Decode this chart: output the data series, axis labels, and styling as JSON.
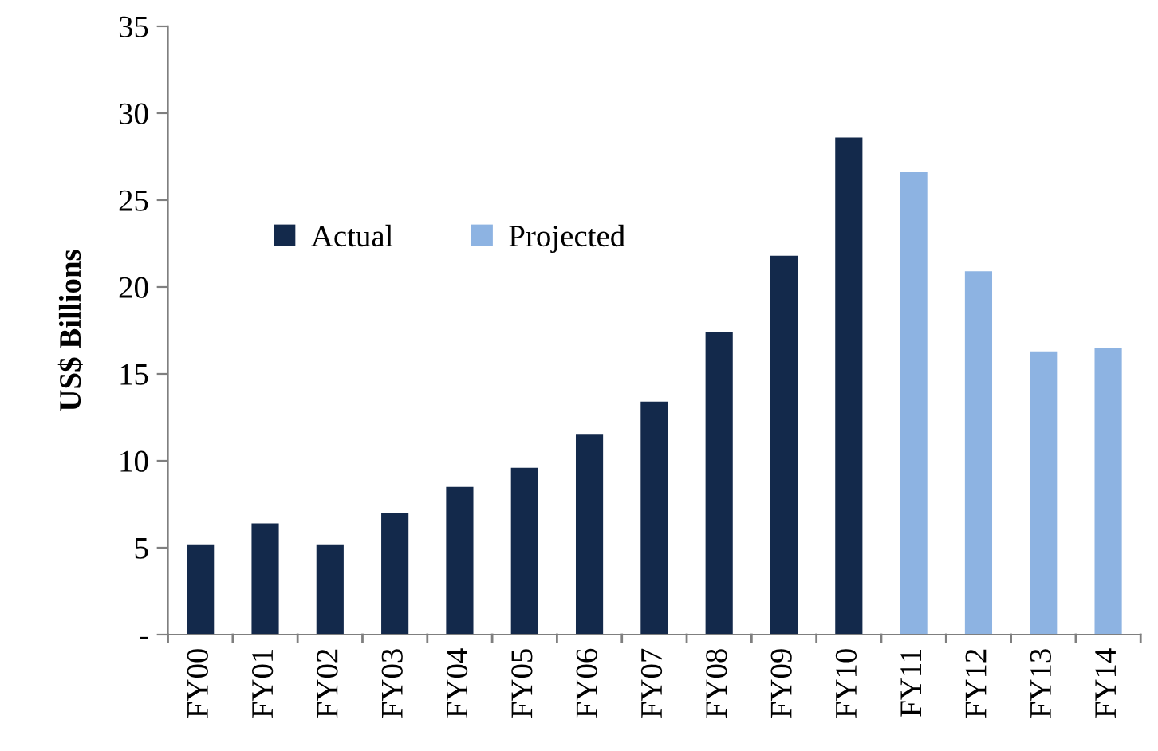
{
  "chart_data": {
    "type": "bar",
    "ylabel": "US$ Billions",
    "categories": [
      "FY00",
      "FY01",
      "FY02",
      "FY03",
      "FY04",
      "FY05",
      "FY06",
      "FY07",
      "FY08",
      "FY09",
      "FY10",
      "FY11",
      "FY12",
      "FY13",
      "FY14"
    ],
    "series": [
      {
        "name": "Actual",
        "color": "#13294b",
        "values": [
          5.2,
          6.4,
          5.2,
          7.0,
          8.5,
          9.6,
          11.5,
          13.4,
          17.4,
          21.8,
          28.6,
          null,
          null,
          null,
          null
        ]
      },
      {
        "name": "Projected",
        "color": "#8db3e2",
        "values": [
          null,
          null,
          null,
          null,
          null,
          null,
          null,
          null,
          null,
          null,
          null,
          26.6,
          20.9,
          16.3,
          16.5
        ]
      }
    ],
    "ylim": [
      0,
      35
    ],
    "yticks": [
      {
        "value": 0,
        "label": "-"
      },
      5,
      10,
      15,
      20,
      25,
      30,
      35
    ],
    "grid": false,
    "legend": "top left"
  }
}
